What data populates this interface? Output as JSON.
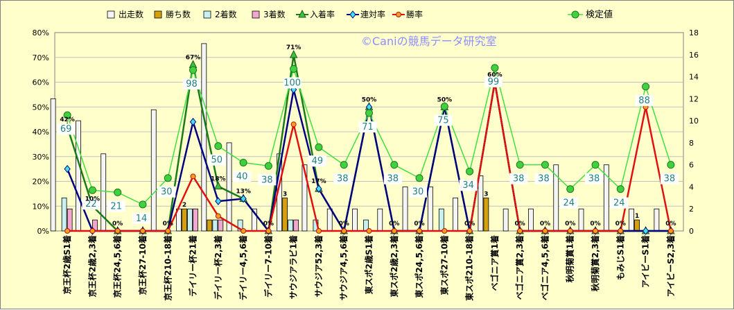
{
  "chart_data": {
    "type": "bar",
    "watermark": "©Caniの競馬データ研究室",
    "categories": [
      "京王杯2歳S1着",
      "京王杯2歳2,3着",
      "京王杯24,5,6着",
      "京王杯27-10着",
      "京王杯210-18着",
      "デイリー杯21着",
      "デイリー杯2,3着",
      "デイリー4,5,6着",
      "デイリー7-10着",
      "サウジアラビ1着",
      "サウジア52,3着",
      "サウジア4,5,6着",
      "東スポ2歳S1着",
      "東スポ2歳2,3着",
      "東スポ24,5,6着",
      "東スポ27-10着",
      "東スポ210-18着",
      "ベゴニア賞1着",
      "ベゴニア賞2,3着",
      "ベゴニア4,5,6着",
      "秋明菊賞1着",
      "秋明菊賞2,3着",
      "もみじS1着",
      "アイビーS1着",
      "アイビーS2,3着"
    ],
    "left_axis": {
      "min": 0,
      "max": 0.8,
      "step": 0.1,
      "ticks": [
        "0%",
        "10%",
        "20%",
        "30%",
        "40%",
        "50%",
        "60%",
        "70%",
        "80%"
      ]
    },
    "right_axis": {
      "min": 0,
      "max": 18,
      "step": 2,
      "ticks": [
        "0",
        "2",
        "4",
        "6",
        "8",
        "10",
        "12",
        "14",
        "16",
        "18"
      ]
    },
    "legend_left": [
      "出走数",
      "勝ち数",
      "2着数",
      "3着数",
      "入着率",
      "連対率",
      "勝率"
    ],
    "legend_right": "検定値",
    "series": [
      {
        "name": "出走数",
        "kind": "bar",
        "axis": "right",
        "color": "#f4f4f4",
        "values": [
          12,
          10,
          7,
          0,
          11,
          2,
          17,
          8,
          2,
          7,
          6,
          2,
          2,
          2,
          4,
          4,
          3,
          5,
          2,
          2,
          6,
          2,
          6,
          2,
          2
        ]
      },
      {
        "name": "勝ち数",
        "kind": "bar",
        "axis": "right",
        "color": "#d4a010",
        "values": [
          0,
          0,
          0,
          0,
          0,
          2,
          1,
          0,
          0,
          3,
          0,
          0,
          0,
          0,
          0,
          0,
          0,
          3,
          0,
          0,
          0,
          0,
          0,
          1,
          0
        ]
      },
      {
        "name": "2着数",
        "kind": "bar",
        "axis": "right",
        "color": "#c8f0f0",
        "values": [
          3,
          0,
          0,
          0,
          0,
          2,
          1,
          1,
          0,
          1,
          1,
          0,
          1,
          0,
          0,
          2,
          0,
          0,
          0,
          0,
          0,
          0,
          0,
          0,
          0
        ]
      },
      {
        "name": "3着数",
        "kind": "bar",
        "axis": "right",
        "color": "#f0a8d0",
        "values": [
          2,
          1,
          0,
          0,
          0,
          2,
          1,
          0,
          0,
          1,
          0,
          0,
          0,
          0,
          0,
          0,
          0,
          0,
          0,
          0,
          0,
          0,
          0,
          0,
          0
        ]
      },
      {
        "name": "入着率",
        "kind": "line",
        "axis": "left",
        "color": "#1a7a1a",
        "values": [
          0.42,
          0.1,
          0.0,
          0.0,
          0.0,
          0.67,
          0.18,
          0.13,
          0.0,
          0.71,
          0.17,
          0.0,
          0.5,
          0.0,
          0.0,
          0.5,
          0.0,
          0.6,
          0.0,
          0.0,
          0.0,
          0.0,
          0.0,
          0.0,
          0.0
        ]
      },
      {
        "name": "連対率",
        "kind": "line",
        "axis": "left",
        "color": "#000080",
        "values": [
          0.25,
          0.0,
          0.0,
          0.0,
          0.0,
          0.44,
          0.12,
          0.13,
          0.0,
          0.57,
          0.17,
          0.0,
          0.5,
          0.0,
          0.0,
          0.5,
          0.0,
          0.6,
          0.0,
          0.0,
          0.0,
          0.0,
          0.0,
          0.0,
          0.0
        ]
      },
      {
        "name": "勝率",
        "kind": "line",
        "axis": "left",
        "color": "#e01010",
        "values": [
          0.0,
          0.0,
          0.0,
          0.0,
          0.0,
          0.22,
          0.06,
          0.0,
          0.0,
          0.43,
          0.0,
          0.0,
          0.0,
          0.0,
          0.0,
          0.0,
          0.0,
          0.6,
          0.0,
          0.0,
          0.0,
          0.0,
          0.0,
          0.5,
          0.0
        ]
      },
      {
        "name": "検定値",
        "kind": "line",
        "axis": "right",
        "color": "#40e040",
        "values": [
          10.5,
          3.7,
          3.5,
          2.4,
          4.8,
          14.6,
          7.7,
          6.2,
          5.9,
          14.7,
          7.6,
          6.0,
          10.7,
          6.0,
          4.8,
          11.3,
          5.4,
          14.8,
          6.0,
          6.0,
          3.8,
          6.0,
          3.8,
          13.1,
          6.0
        ]
      }
    ],
    "value_labels": [
      69,
      22,
      21,
      14,
      30,
      98,
      50,
      40,
      38,
      100,
      49,
      38,
      71,
      38,
      30,
      75,
      34,
      99,
      38,
      38,
      24,
      38,
      24,
      88,
      38
    ],
    "rate_labels": [
      "42%",
      "10%",
      "0%",
      "",
      "0%",
      "67%",
      "18%",
      "13%",
      "0%",
      "71%",
      "17%",
      "0%",
      "50%",
      "0%",
      "0%",
      "50%",
      "0%",
      "60%",
      "0%",
      "0%",
      "0%",
      "0%",
      "0%",
      "",
      "0%"
    ],
    "win_count_labels": [
      "",
      "",
      "",
      "",
      "",
      "2",
      "",
      "",
      "",
      "3",
      "",
      "",
      "",
      "",
      "",
      "",
      "",
      "3",
      "",
      "",
      "",
      "",
      "",
      "1",
      ""
    ],
    "grid": true
  }
}
